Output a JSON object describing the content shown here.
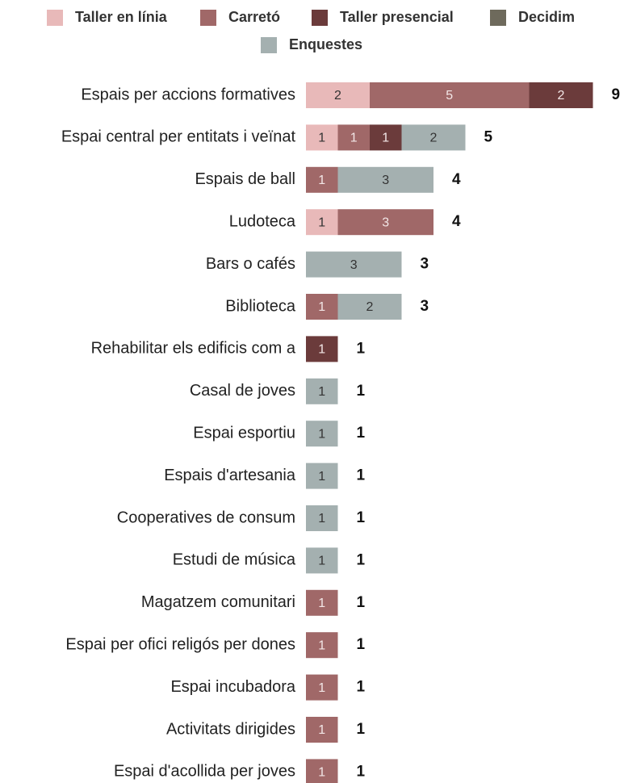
{
  "chart_data": {
    "type": "stacked-horizontal-bar",
    "categories": [
      "Espais per accions formatives",
      "Espai central per entitats i veïnat",
      "Espais de ball",
      "Ludoteca",
      "Bars o cafés",
      "Biblioteca",
      "Rehabilitar els edificis com a",
      "Casal de joves",
      "Espai esportiu",
      "Espais d'artesania",
      "Cooperatives de consum",
      "Estudi de música",
      "Magatzem comunitari",
      "Espai per ofici religós per dones",
      "Espai incubadora",
      "Activitats dirigides",
      "Espai d'acollida per joves"
    ],
    "series": [
      {
        "name": "Taller en línia",
        "color": "#e8b9b9",
        "text_color": "#333333",
        "values": [
          2,
          1,
          null,
          1,
          null,
          null,
          null,
          null,
          null,
          null,
          null,
          null,
          null,
          null,
          null,
          null,
          null
        ]
      },
      {
        "name": "Carretó",
        "color": "#a06868",
        "text_color": "#f2e6e6",
        "values": [
          5,
          1,
          1,
          3,
          null,
          1,
          null,
          null,
          null,
          null,
          null,
          null,
          1,
          1,
          1,
          1,
          1
        ]
      },
      {
        "name": "Taller presencial",
        "color": "#6b3b3b",
        "text_color": "#f2e6e6",
        "values": [
          2,
          1,
          null,
          null,
          null,
          null,
          1,
          null,
          null,
          null,
          null,
          null,
          null,
          null,
          null,
          null,
          null
        ]
      },
      {
        "name": "Decidim",
        "color": "#6e6a5c",
        "text_color": "#f2e6e6",
        "values": [
          null,
          null,
          null,
          null,
          null,
          null,
          null,
          null,
          null,
          null,
          null,
          null,
          null,
          null,
          null,
          null,
          null
        ]
      },
      {
        "name": "Enquestes",
        "color": "#a4b0b0",
        "text_color": "#333333",
        "values": [
          null,
          2,
          3,
          null,
          3,
          2,
          null,
          1,
          1,
          1,
          1,
          1,
          null,
          null,
          null,
          null,
          null
        ]
      }
    ],
    "totals": [
      9,
      5,
      4,
      4,
      3,
      3,
      1,
      1,
      1,
      1,
      1,
      1,
      1,
      1,
      1,
      1,
      1
    ]
  }
}
